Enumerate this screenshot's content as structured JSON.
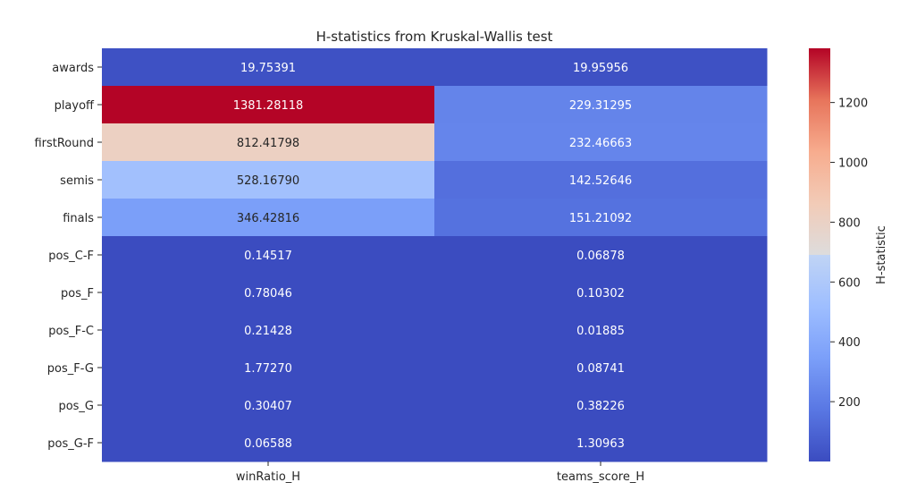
{
  "chart_data": {
    "type": "heatmap",
    "title": "H-statistics from Kruskal-Wallis test",
    "rows": [
      "awards",
      "playoff",
      "firstRound",
      "semis",
      "finals",
      "pos_C-F",
      "pos_F",
      "pos_F-C",
      "pos_F-G",
      "pos_G",
      "pos_G-F"
    ],
    "columns": [
      "winRatio_H",
      "teams_score_H"
    ],
    "values": [
      [
        19.75391,
        19.95956
      ],
      [
        1381.28118,
        229.31295
      ],
      [
        812.41798,
        232.46663
      ],
      [
        528.1679,
        142.52646
      ],
      [
        346.42816,
        151.21092
      ],
      [
        0.14517,
        0.06878
      ],
      [
        0.78046,
        0.10302
      ],
      [
        0.21428,
        0.01885
      ],
      [
        1.7727,
        0.08741
      ],
      [
        0.30407,
        0.38226
      ],
      [
        0.06588,
        1.30963
      ]
    ],
    "value_labels": [
      [
        "19.75391",
        "19.95956"
      ],
      [
        "1381.28118",
        "229.31295"
      ],
      [
        "812.41798",
        "232.46663"
      ],
      [
        "528.16790",
        "142.52646"
      ],
      [
        "346.42816",
        "151.21092"
      ],
      [
        "0.14517",
        "0.06878"
      ],
      [
        "0.78046",
        "0.10302"
      ],
      [
        "0.21428",
        "0.01885"
      ],
      [
        "1.77270",
        "0.08741"
      ],
      [
        "0.30407",
        "0.38226"
      ],
      [
        "0.06588",
        "1.30963"
      ]
    ],
    "colormap": "coolwarm",
    "colorbar": {
      "label": "H-statistic",
      "range": [
        0.01885,
        1381.28118
      ],
      "ticks": [
        200,
        400,
        600,
        800,
        1000,
        1200
      ],
      "tick_labels": [
        "200",
        "400",
        "600",
        "800",
        "1000",
        "1200"
      ]
    }
  }
}
